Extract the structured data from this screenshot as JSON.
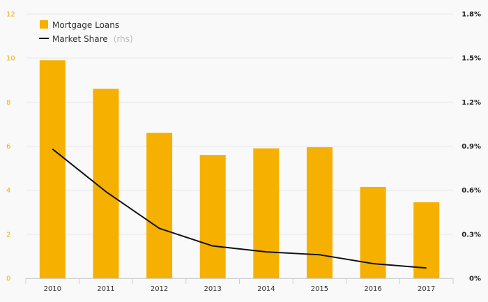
{
  "colors": {
    "bar": "#f5b000",
    "line": "#111111",
    "left_axis_text": "#f5b000",
    "grid": "#e6e6e6",
    "background": "#f9f9f9"
  },
  "legend": {
    "bar_label": "Mortgage Loans",
    "line_label": "Market Share",
    "line_note": "(rhs)",
    "position": "top-left"
  },
  "chart_data": {
    "type": "bar",
    "categories": [
      "2010",
      "2011",
      "2012",
      "2013",
      "2014",
      "2015",
      "2016",
      "2017"
    ],
    "series": [
      {
        "name": "Mortgage Loans",
        "type": "bar",
        "axis": "left",
        "values": [
          9.9,
          8.6,
          6.6,
          5.6,
          5.9,
          5.95,
          4.15,
          3.45
        ]
      },
      {
        "name": "Market Share",
        "type": "line",
        "axis": "right",
        "values": [
          0.88,
          0.59,
          0.34,
          0.22,
          0.18,
          0.16,
          0.1,
          0.07
        ]
      }
    ],
    "y_left": {
      "lim": [
        0,
        12
      ],
      "ticks": [
        "0",
        "2",
        "4",
        "6",
        "8",
        "10",
        "12"
      ],
      "tick_values": [
        0,
        2,
        4,
        6,
        8,
        10,
        12
      ]
    },
    "y_right": {
      "lim": [
        0,
        1.8
      ],
      "ticks": [
        "0%",
        "0.3%",
        "0.6%",
        "0.9%",
        "1.2%",
        "1.5%",
        "1.8%"
      ],
      "tick_values": [
        0,
        0.3,
        0.6,
        0.9,
        1.2,
        1.5,
        1.8
      ]
    },
    "grid": true,
    "legend_position": "top-left"
  }
}
